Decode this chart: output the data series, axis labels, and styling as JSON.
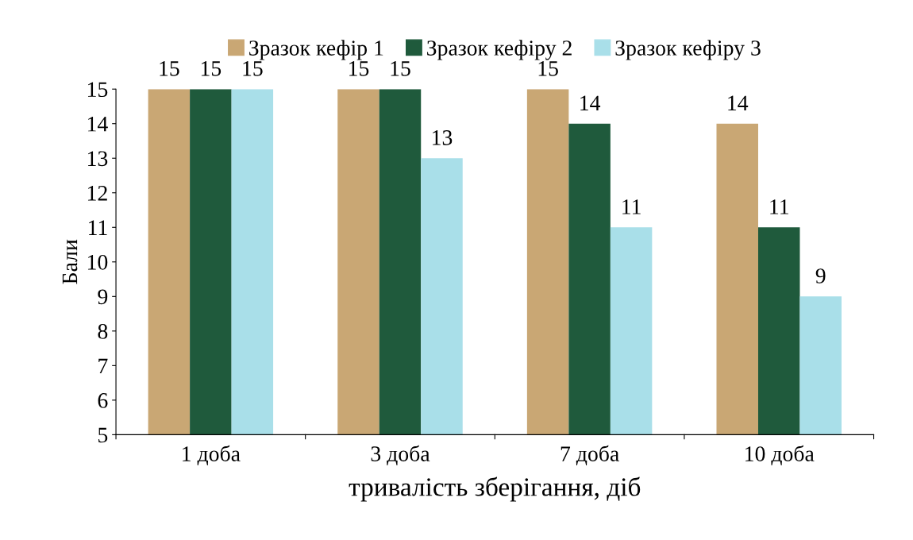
{
  "chart_data": {
    "type": "bar",
    "xlabel": "тривалість зберігання, діб",
    "ylabel": "Бали",
    "categories": [
      "1 доба",
      "3 доба",
      "7 доба",
      "10 доба"
    ],
    "series": [
      {
        "name": "Зразок кефір 1",
        "color": "#c9a774",
        "values": [
          15,
          15,
          15,
          14
        ]
      },
      {
        "name": "Зразок кефіру 2",
        "color": "#1f5a3c",
        "values": [
          15,
          15,
          14,
          11
        ]
      },
      {
        "name": "Зразок кефіру 3",
        "color": "#a9dfe9",
        "values": [
          15,
          13,
          11,
          9
        ]
      }
    ],
    "ylim": [
      5,
      15
    ],
    "yticks": [
      5,
      6,
      7,
      8,
      9,
      10,
      11,
      12,
      13,
      14,
      15
    ],
    "data_labels": true,
    "legend": "top",
    "grid": false
  }
}
